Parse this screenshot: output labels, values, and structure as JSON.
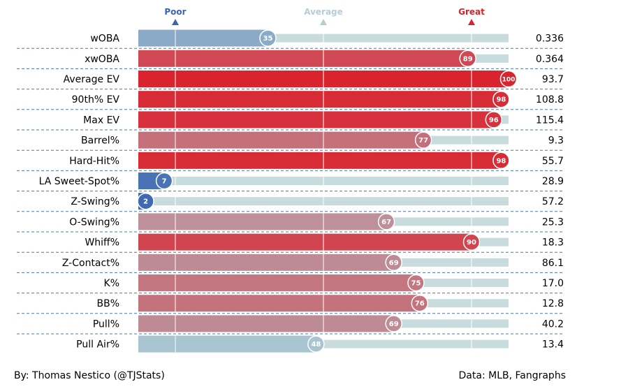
{
  "chart_data": {
    "type": "bar",
    "orientation": "horizontal",
    "xlim": [
      0,
      100
    ],
    "scale_markers": [
      {
        "label": "Poor",
        "position": 10,
        "color": "#3a65b0"
      },
      {
        "label": "Average",
        "position": 50,
        "color": "#b4cdd6"
      },
      {
        "label": "Great",
        "position": 90,
        "color": "#d9242f"
      }
    ],
    "rows": [
      {
        "metric": "wOBA",
        "percentile": 35,
        "value": "0.336"
      },
      {
        "metric": "xwOBA",
        "percentile": 89,
        "value": "0.364"
      },
      {
        "metric": "Average EV",
        "percentile": 100,
        "value": "93.7"
      },
      {
        "metric": "90th% EV",
        "percentile": 98,
        "value": "108.8"
      },
      {
        "metric": "Max EV",
        "percentile": 96,
        "value": "115.4"
      },
      {
        "metric": "Barrel%",
        "percentile": 77,
        "value": "9.3"
      },
      {
        "metric": "Hard-Hit%",
        "percentile": 98,
        "value": "55.7"
      },
      {
        "metric": "LA Sweet-Spot%",
        "percentile": 7,
        "value": "28.9"
      },
      {
        "metric": "Z-Swing%",
        "percentile": 2,
        "value": "57.2"
      },
      {
        "metric": "O-Swing%",
        "percentile": 67,
        "value": "25.3"
      },
      {
        "metric": "Whiff%",
        "percentile": 90,
        "value": "18.3"
      },
      {
        "metric": "Z-Contact%",
        "percentile": 69,
        "value": "86.1"
      },
      {
        "metric": "K%",
        "percentile": 75,
        "value": "17.0"
      },
      {
        "metric": "BB%",
        "percentile": 76,
        "value": "12.8"
      },
      {
        "metric": "Pull%",
        "percentile": 69,
        "value": "40.2"
      },
      {
        "metric": "Pull Air%",
        "percentile": 48,
        "value": "13.4"
      }
    ],
    "colors": {
      "track": "#c8dcdd",
      "gridline": "#ffffff",
      "divider": "#4a78a8",
      "scale": [
        "#3a65b0",
        "#aec8d2",
        "#d9242f"
      ]
    }
  },
  "footer": {
    "left": "By: Thomas Nestico (@TJStats)",
    "right": "Data: MLB, Fangraphs"
  }
}
